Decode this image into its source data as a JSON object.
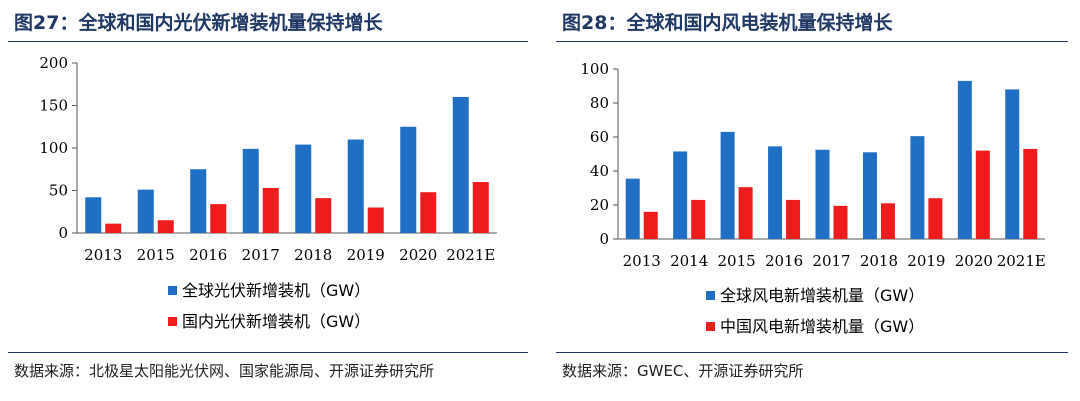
{
  "colors": {
    "blue": "#1f6fc4",
    "red": "#ee1c1c",
    "title_blue": "#1f3864"
  },
  "left": {
    "title": "图27：全球和国内光伏新增装机量保持增长",
    "source": "数据来源：北极星太阳能光伏网、国家能源局、开源证券研究所",
    "chart_data": {
      "type": "bar",
      "categories": [
        "2013",
        "2015",
        "2016",
        "2017",
        "2018",
        "2019",
        "2020",
        "2021E"
      ],
      "series": [
        {
          "name": "全球光伏新增装机（GW）",
          "values": [
            42,
            51,
            75,
            99,
            104,
            110,
            125,
            160
          ]
        },
        {
          "name": "国内光伏新增装机（GW）",
          "values": [
            11,
            15,
            34,
            53,
            41,
            30,
            48,
            60
          ]
        }
      ],
      "ylim": [
        0,
        200
      ],
      "yticks": [
        "0",
        "50",
        "100",
        "150",
        "200"
      ],
      "legend": "bottom"
    }
  },
  "right": {
    "title": "图28：全球和国内风电装机量保持增长",
    "source": "数据来源：GWEC、开源证券研究所",
    "chart_data": {
      "type": "bar",
      "categories": [
        "2013",
        "2014",
        "2015",
        "2016",
        "2017",
        "2018",
        "2019",
        "2020",
        "2021E"
      ],
      "series": [
        {
          "name": "全球风电新增装机量（GW）",
          "values": [
            35.5,
            51.5,
            63,
            54.5,
            52.5,
            51,
            60.5,
            93,
            88
          ]
        },
        {
          "name": "中国风电新增装机量（GW）",
          "values": [
            16,
            23,
            30.5,
            23,
            19.5,
            21,
            24,
            52,
            53
          ]
        }
      ],
      "ylim": [
        0,
        100
      ],
      "yticks": [
        "0",
        "20",
        "40",
        "60",
        "80",
        "100"
      ],
      "legend": "bottom"
    }
  }
}
